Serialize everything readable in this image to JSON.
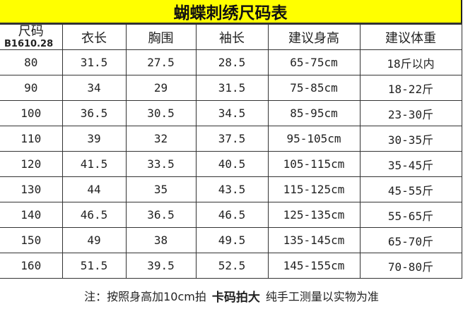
{
  "title": "蝴蝶刺绣尺码表",
  "watermark": "B1610.28",
  "headers": [
    "尺码",
    "衣长",
    "胸围",
    "袖长",
    "建议身高",
    "建议体重"
  ],
  "rows": [
    [
      "80",
      "31.5",
      "27.5",
      "28.5",
      "65-75cm",
      "18斤以内"
    ],
    [
      "90",
      "34",
      "29",
      "31.5",
      "75-85cm",
      "18-22斤"
    ],
    [
      "100",
      "36.5",
      "30.5",
      "34.5",
      "85-95cm",
      "23-30斤"
    ],
    [
      "110",
      "39",
      "32",
      "37.5",
      "95-105cm",
      "30-35斤"
    ],
    [
      "120",
      "41.5",
      "33.5",
      "40.5",
      "105-115cm",
      "35-45斤"
    ],
    [
      "130",
      "44",
      "35",
      "43.5",
      "115-125cm",
      "45-55斤"
    ],
    [
      "140",
      "46.5",
      "36.5",
      "46.5",
      "125-135cm",
      "55-65斤"
    ],
    [
      "150",
      "49",
      "38",
      "49.5",
      "135-145cm",
      "65-70斤"
    ],
    [
      "160",
      "51.5",
      "39.5",
      "52.5",
      "145-155cm",
      "70-80斤"
    ]
  ],
  "note": {
    "part1": "注：按照身高加10cm拍",
    "bold": "卡码拍大",
    "part2": "纯手工测量以实物为准"
  },
  "colors": {
    "title_bg": "#ffff00"
  }
}
